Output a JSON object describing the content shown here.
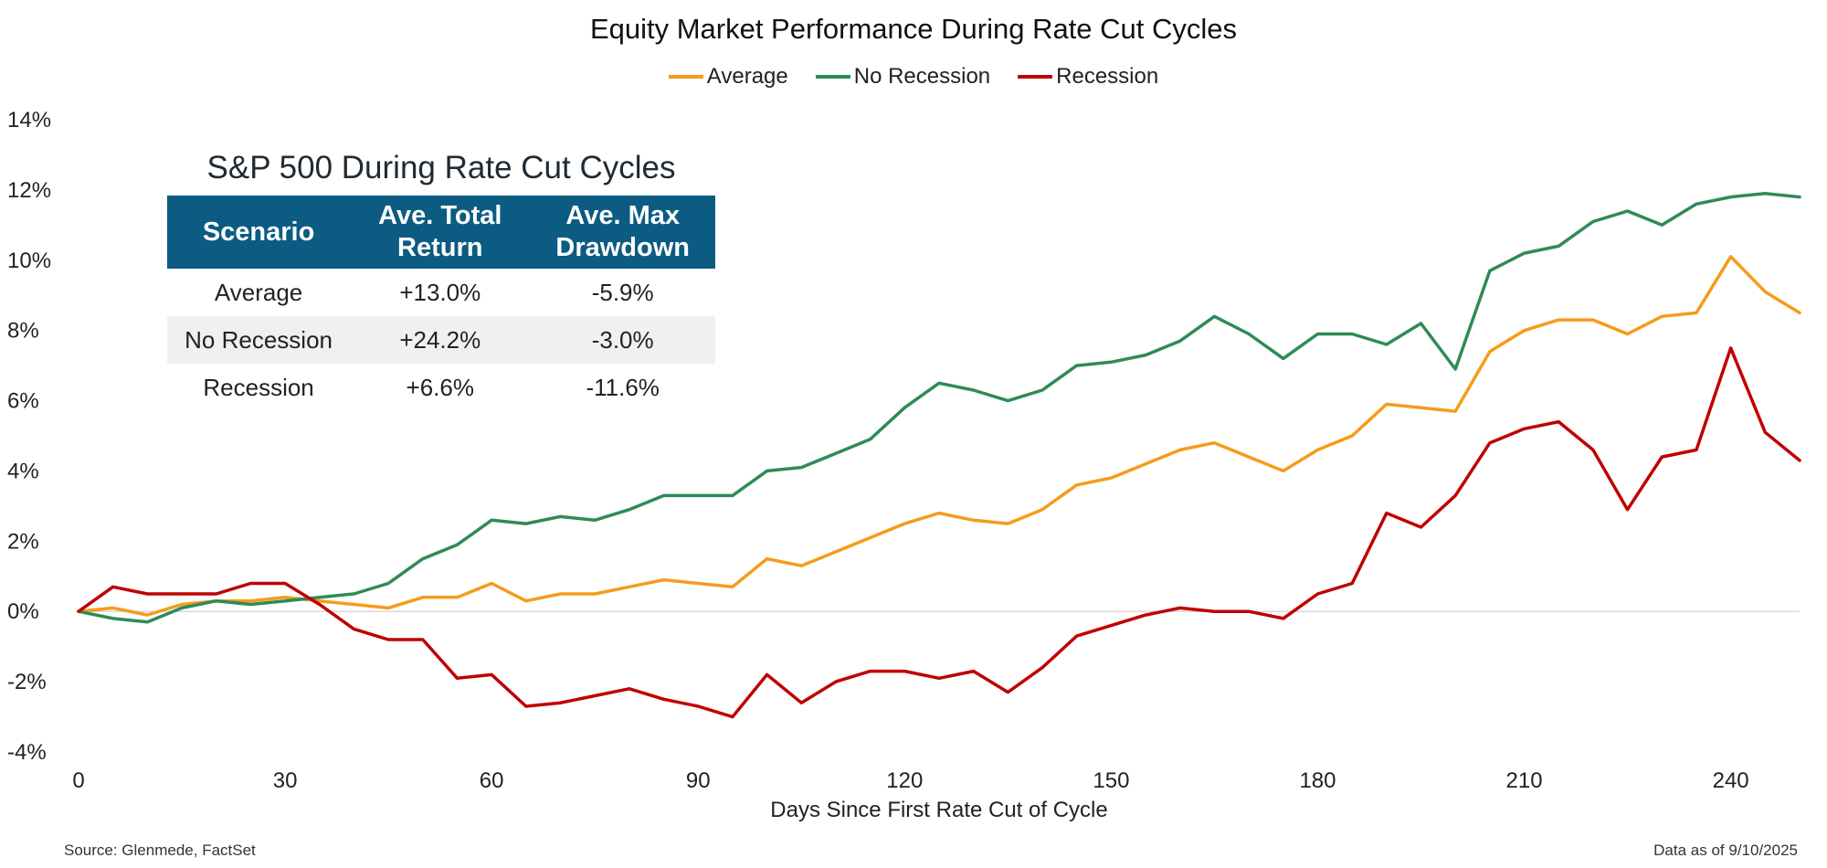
{
  "title": "Equity Market Performance During Rate Cut Cycles",
  "legend": [
    {
      "label": "Average",
      "color": "#f59c1a"
    },
    {
      "label": "No Recession",
      "color": "#2e8b57"
    },
    {
      "label": "Recession",
      "color": "#c00000"
    }
  ],
  "table": {
    "title": "S&P 500 During Rate Cut Cycles",
    "headers": [
      "Scenario",
      "Ave. Total Return",
      "Ave. Max Drawdown"
    ],
    "rows": [
      [
        "Average",
        "+13.0%",
        "-5.9%"
      ],
      [
        "No Recession",
        "+24.2%",
        "-3.0%"
      ],
      [
        "Recession",
        "+6.6%",
        "-11.6%"
      ]
    ],
    "header_color": "#0b5b82"
  },
  "footer": {
    "source": "Source: Glenmede, FactSet",
    "as_of": "Data as of 9/10/2025"
  },
  "chart_data": {
    "type": "line",
    "title": "Equity Market Performance During Rate Cut Cycles",
    "xlabel": "Days Since First Rate Cut of Cycle",
    "ylabel": "",
    "xlim": [
      0,
      250
    ],
    "ylim": [
      -4,
      14
    ],
    "x_ticks": [
      0,
      30,
      60,
      90,
      120,
      150,
      180,
      210,
      240
    ],
    "y_ticks": [
      -4,
      -2,
      0,
      2,
      4,
      6,
      8,
      10,
      12,
      14
    ],
    "y_tick_labels": [
      "-4%",
      "-2%",
      "0%",
      "2%",
      "4%",
      "6%",
      "8%",
      "10%",
      "12%",
      "14%"
    ],
    "grid": false,
    "zero_line": true,
    "legend_position": "top-center",
    "x": [
      0,
      5,
      10,
      15,
      20,
      25,
      30,
      35,
      40,
      45,
      50,
      55,
      60,
      65,
      70,
      75,
      80,
      85,
      90,
      95,
      100,
      105,
      110,
      115,
      120,
      125,
      130,
      135,
      140,
      145,
      150,
      155,
      160,
      165,
      170,
      175,
      180,
      185,
      190,
      195,
      200,
      205,
      210,
      215,
      220,
      225,
      230,
      235,
      240,
      245,
      250
    ],
    "series": [
      {
        "name": "Average",
        "color": "#f59c1a",
        "values": [
          0.0,
          0.1,
          -0.1,
          0.2,
          0.3,
          0.3,
          0.4,
          0.3,
          0.2,
          0.1,
          0.4,
          0.4,
          0.8,
          0.3,
          0.5,
          0.5,
          0.7,
          0.9,
          0.8,
          0.7,
          1.5,
          1.3,
          1.7,
          2.1,
          2.5,
          2.8,
          2.6,
          2.5,
          2.9,
          3.6,
          3.8,
          4.2,
          4.6,
          4.8,
          4.4,
          4.0,
          4.6,
          5.0,
          5.9,
          5.8,
          5.7,
          7.4,
          8.0,
          8.3,
          8.3,
          7.9,
          8.4,
          8.5,
          10.1,
          9.1,
          8.5
        ]
      },
      {
        "name": "No Recession",
        "color": "#2e8b57",
        "values": [
          0.0,
          -0.2,
          -0.3,
          0.1,
          0.3,
          0.2,
          0.3,
          0.4,
          0.5,
          0.8,
          1.5,
          1.9,
          2.6,
          2.5,
          2.7,
          2.6,
          2.9,
          3.3,
          3.3,
          3.3,
          4.0,
          4.1,
          4.5,
          4.9,
          5.8,
          6.5,
          6.3,
          6.0,
          6.3,
          7.0,
          7.1,
          7.3,
          7.7,
          8.4,
          7.9,
          7.2,
          7.9,
          7.9,
          7.6,
          8.2,
          6.9,
          9.7,
          10.2,
          10.4,
          11.1,
          11.4,
          11.0,
          11.6,
          11.8,
          11.9,
          11.8
        ]
      },
      {
        "name": "Recession",
        "color": "#c00000",
        "values": [
          0.0,
          0.7,
          0.5,
          0.5,
          0.5,
          0.8,
          0.8,
          0.2,
          -0.5,
          -0.8,
          -0.8,
          -1.9,
          -1.8,
          -2.7,
          -2.6,
          -2.4,
          -2.2,
          -2.5,
          -2.7,
          -3.0,
          -1.8,
          -2.6,
          -2.0,
          -1.7,
          -1.7,
          -1.9,
          -1.7,
          -2.3,
          -1.6,
          -0.7,
          -0.4,
          -0.1,
          0.1,
          0.0,
          0.0,
          -0.2,
          0.5,
          0.8,
          2.8,
          2.4,
          3.3,
          4.8,
          5.2,
          5.4,
          4.6,
          2.9,
          4.4,
          4.6,
          7.5,
          5.1,
          4.3
        ]
      }
    ]
  }
}
